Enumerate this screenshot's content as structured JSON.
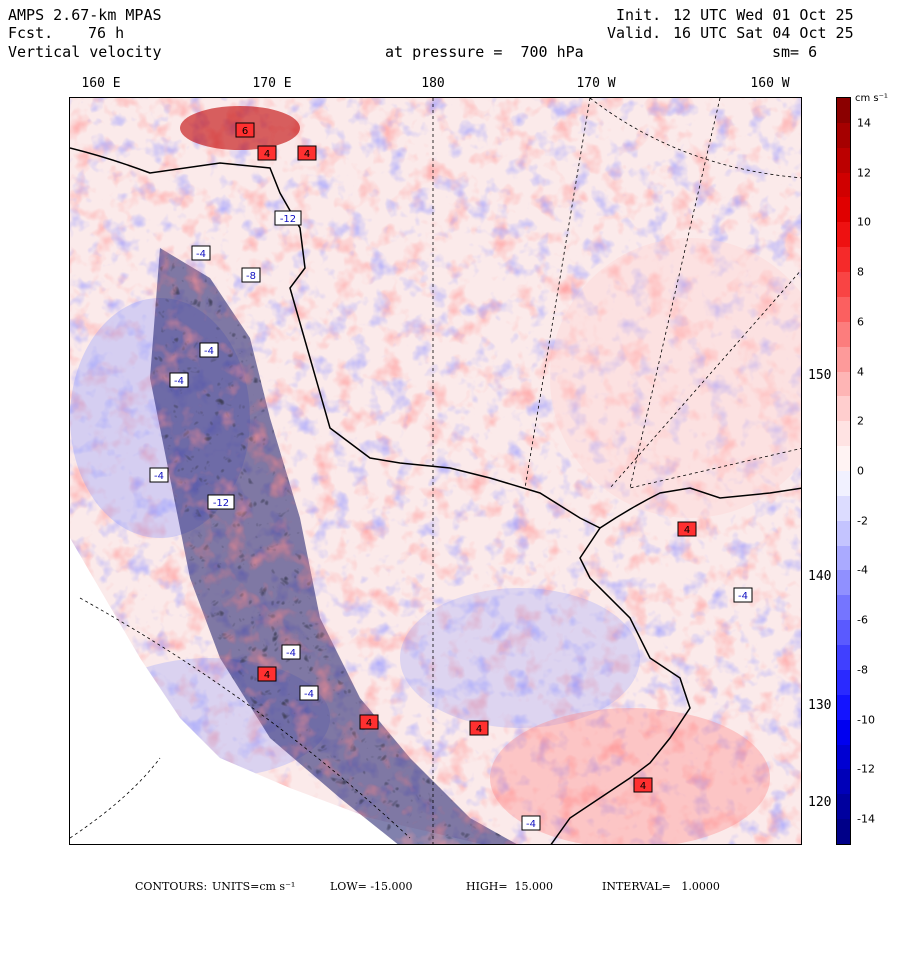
{
  "header": {
    "model": "AMPS 2.67-km MPAS",
    "forecast_label": "Fcst.",
    "forecast_hours": "76 h",
    "field": "Vertical velocity",
    "init_label": "Init.",
    "init_time": "12 UTC Wed 01 Oct 25",
    "valid_label": "Valid.",
    "valid_time": "16 UTC Sat 04 Oct 25",
    "pressure_text": "at pressure =  700 hPa",
    "smoothing": "sm= 6"
  },
  "longitude_labels": [
    "160 E",
    "170 E",
    "180",
    "170 W",
    "160 W"
  ],
  "latitude_labels": [
    "150 W",
    "140 W",
    "130 W",
    "120 W"
  ],
  "colorbar": {
    "units": "cm s⁻¹",
    "tick_labels": [
      "14",
      "12",
      "10",
      "8",
      "6",
      "4",
      "2",
      "0",
      "-2",
      "-4",
      "-6",
      "-8",
      "-10",
      "-12",
      "-14"
    ],
    "colors": [
      "#8b0000",
      "#a50000",
      "#bb0000",
      "#d00000",
      "#e00000",
      "#ee1111",
      "#f52a2a",
      "#f94444",
      "#fb6060",
      "#fc7d7d",
      "#fd9a9a",
      "#feb5b5",
      "#ffcece",
      "#ffe3e3",
      "#fff3f3",
      "#f1f1ff",
      "#dcdcff",
      "#c4c4ff",
      "#aaaaff",
      "#9090ff",
      "#7575ff",
      "#5a5aff",
      "#4040ff",
      "#2a2aff",
      "#1414ff",
      "#0000f0",
      "#0000d2",
      "#0000b8",
      "#00009e",
      "#000088"
    ],
    "range": [
      -15,
      15
    ],
    "interval": 1
  },
  "footer": {
    "contours_label": "CONTOURS:",
    "units_text": "UNITS=cm s⁻¹",
    "low_text": "LOW= -15.000",
    "high_text": "HIGH=  15.000",
    "interval_text": "INTERVAL=   1.0000"
  },
  "map_labels": [
    {
      "value": "6",
      "kind": "max"
    },
    {
      "value": "4",
      "kind": "max"
    },
    {
      "value": "4",
      "kind": "max"
    },
    {
      "value": "-12",
      "kind": "min"
    },
    {
      "value": "-4",
      "kind": "min"
    },
    {
      "value": "-8",
      "kind": "min"
    },
    {
      "value": "-4",
      "kind": "min"
    },
    {
      "value": "-4",
      "kind": "min"
    },
    {
      "value": "-4",
      "kind": "min"
    },
    {
      "value": "-12",
      "kind": "min"
    },
    {
      "value": "4",
      "kind": "max"
    },
    {
      "value": "-4",
      "kind": "min"
    },
    {
      "value": "-4",
      "kind": "min"
    },
    {
      "value": "4",
      "kind": "max"
    },
    {
      "value": "-4",
      "kind": "min"
    },
    {
      "value": "4",
      "kind": "max"
    },
    {
      "value": "4",
      "kind": "max"
    },
    {
      "value": "4",
      "kind": "max"
    },
    {
      "value": "-4",
      "kind": "min"
    }
  ]
}
